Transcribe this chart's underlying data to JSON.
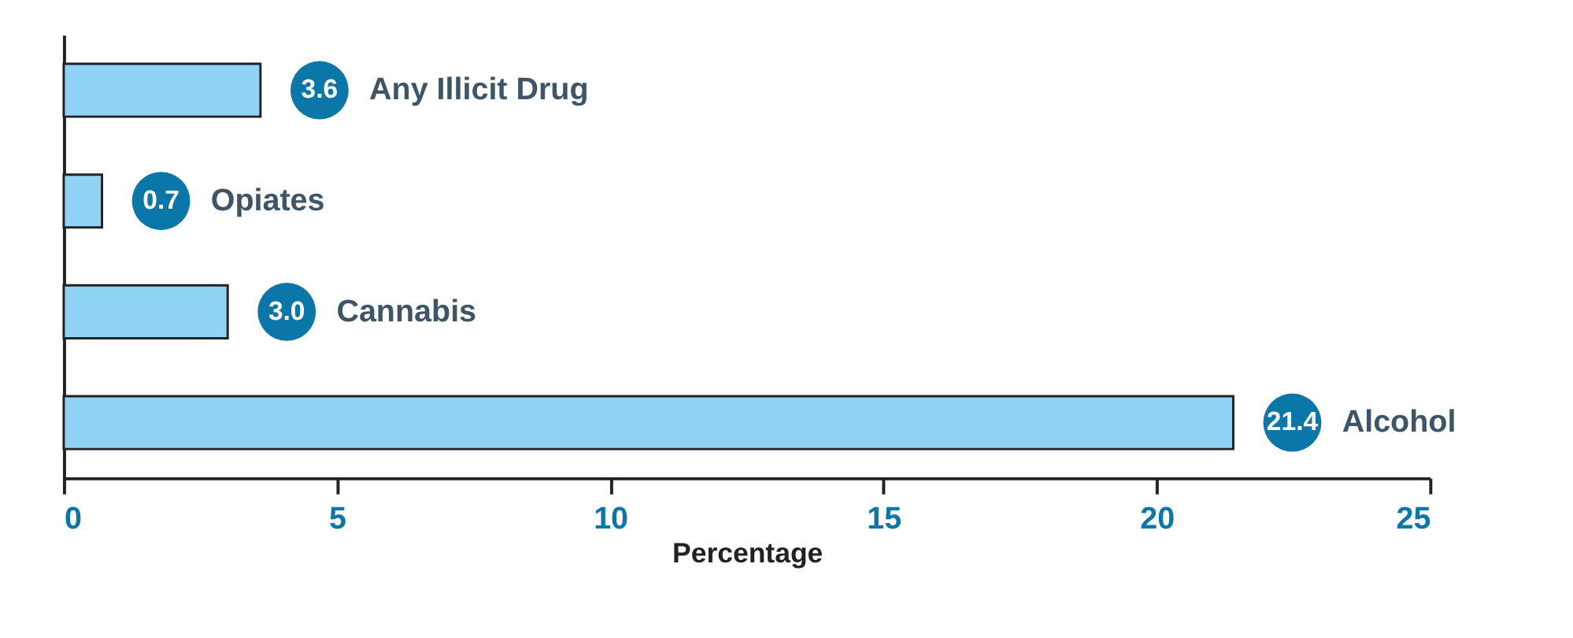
{
  "chart_data": {
    "type": "bar",
    "orientation": "horizontal",
    "categories": [
      "Any Illicit Drug",
      "Opiates",
      "Cannabis",
      "Alcohol"
    ],
    "values": [
      3.6,
      0.7,
      3.0,
      21.4
    ],
    "color": "#8fd3f4",
    "value_labels": [
      "3.6",
      "0.7",
      "3.0",
      "21.4"
    ],
    "xlabel": "Percentage",
    "xlim": [
      0,
      25
    ],
    "xticks": [
      0,
      5,
      10,
      15,
      20,
      25
    ],
    "tick_labels": "x",
    "grid": false
  }
}
